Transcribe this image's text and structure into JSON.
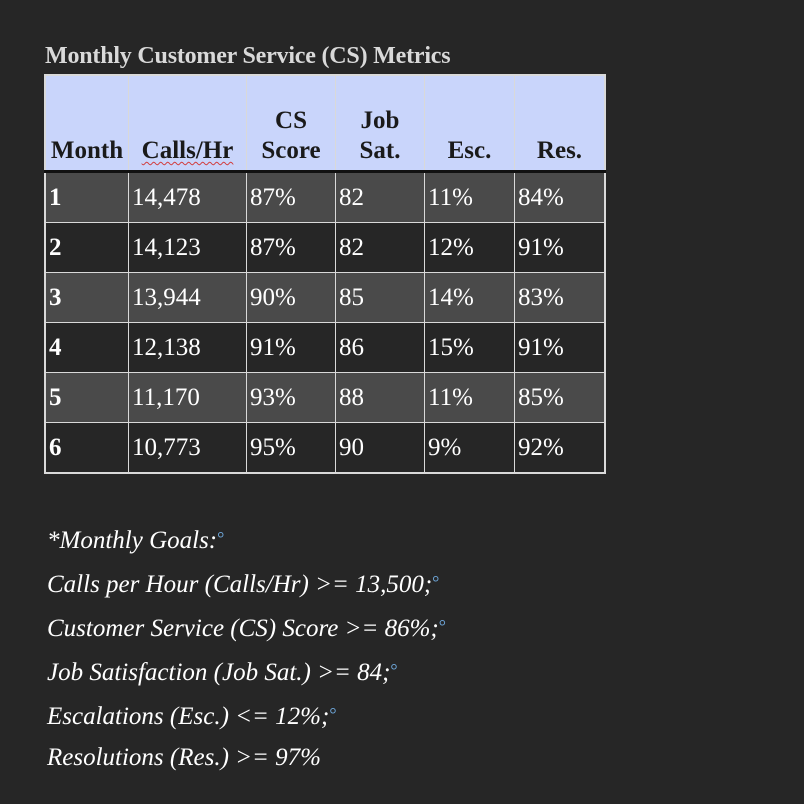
{
  "document": {
    "title": "Monthly Customer Service (CS) Metrics",
    "table": {
      "headers": [
        {
          "line1": "",
          "line2": "Month"
        },
        {
          "line1": "",
          "line2": "Calls/Hr"
        },
        {
          "line1": "CS",
          "line2": "Score"
        },
        {
          "line1": "Job",
          "line2": "Sat."
        },
        {
          "line1": "",
          "line2": "Esc."
        },
        {
          "line1": "",
          "line2": "Res."
        }
      ],
      "rows": [
        [
          "1",
          "14,478",
          "87%",
          "82",
          "11%",
          "84%"
        ],
        [
          "2",
          "14,123",
          "87%",
          "82",
          "12%",
          "91%"
        ],
        [
          "3",
          "13,944",
          "90%",
          "85",
          "14%",
          "83%"
        ],
        [
          "4",
          "12,138",
          "91%",
          "86",
          "15%",
          "91%"
        ],
        [
          "5",
          "11,170",
          "93%",
          "88",
          "11%",
          "85%"
        ],
        [
          "6",
          "10,773",
          "95%",
          "90",
          "9%",
          "92%"
        ]
      ]
    },
    "goals": {
      "heading": "*Monthly Goals:",
      "items": [
        "Calls per Hour (Calls/Hr) >= 13,500;",
        "Customer Service (CS) Score >= 86%;",
        "Job Satisfaction (Job Sat.) >= 84;",
        "Escalations (Esc.) <= 12%;",
        "Resolutions (Res.) >= 97%"
      ]
    }
  }
}
